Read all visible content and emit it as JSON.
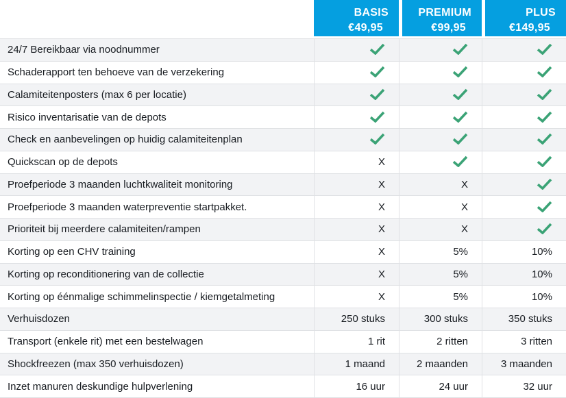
{
  "table": {
    "plans": [
      {
        "name": "BASIS",
        "price": "€49,95"
      },
      {
        "name": "PREMIUM",
        "price": "€99,95"
      },
      {
        "name": "PLUS",
        "price": "€149,95"
      }
    ],
    "rows": [
      {
        "label": "24/7 Bereikbaar via noodnummer",
        "values": [
          "check",
          "check",
          "check"
        ]
      },
      {
        "label": "Schaderapport ten behoeve van de verzekering",
        "values": [
          "check",
          "check",
          "check"
        ]
      },
      {
        "label": "Calamiteitenposters (max 6 per locatie)",
        "values": [
          "check",
          "check",
          "check"
        ]
      },
      {
        "label": "Risico inventarisatie van de depots",
        "values": [
          "check",
          "check",
          "check"
        ]
      },
      {
        "label": "Check en aanbevelingen op huidig calamiteitenplan",
        "values": [
          "check",
          "check",
          "check"
        ]
      },
      {
        "label": "Quickscan op de depots",
        "values": [
          "X",
          "check",
          "check"
        ]
      },
      {
        "label": "Proefperiode 3 maanden luchtkwaliteit monitoring",
        "values": [
          "X",
          "X",
          "check"
        ]
      },
      {
        "label": "Proefperiode 3 maanden waterpreventie startpakket.",
        "values": [
          "X",
          "X",
          "check"
        ]
      },
      {
        "label": "Prioriteit bij meerdere calamiteiten/rampen",
        "values": [
          "X",
          "X",
          "check"
        ]
      },
      {
        "label": "Korting op een CHV training",
        "values": [
          "X",
          "5%",
          "10%"
        ]
      },
      {
        "label": "Korting op reconditionering van de collectie",
        "values": [
          "X",
          "5%",
          "10%"
        ]
      },
      {
        "label": "Korting op éénmalige schimmelinspectie / kiemgetalmeting",
        "values": [
          "X",
          "5%",
          "10%"
        ]
      },
      {
        "label": "Verhuisdozen",
        "values": [
          "250 stuks",
          "300 stuks",
          "350 stuks"
        ]
      },
      {
        "label": "Transport (enkele rit) met een bestelwagen",
        "values": [
          "1 rit",
          "2 ritten",
          "3 ritten"
        ]
      },
      {
        "label": "Shockfreezen (max 350 verhuisdozen)",
        "values": [
          "1 maand",
          "2 maanden",
          "3 maanden"
        ]
      },
      {
        "label": "Inzet manuren deskundige hulpverlening",
        "values": [
          "16 uur",
          "24 uur",
          "32 uur"
        ]
      }
    ],
    "icons": {
      "included": "check-icon",
      "not_included": "X"
    },
    "colors": {
      "header_bg": "#059FE0",
      "check_green": "#3BA376",
      "row_alt_bg": "#F2F3F5",
      "separator": "#DFE1E4",
      "text": "#171B20"
    }
  }
}
